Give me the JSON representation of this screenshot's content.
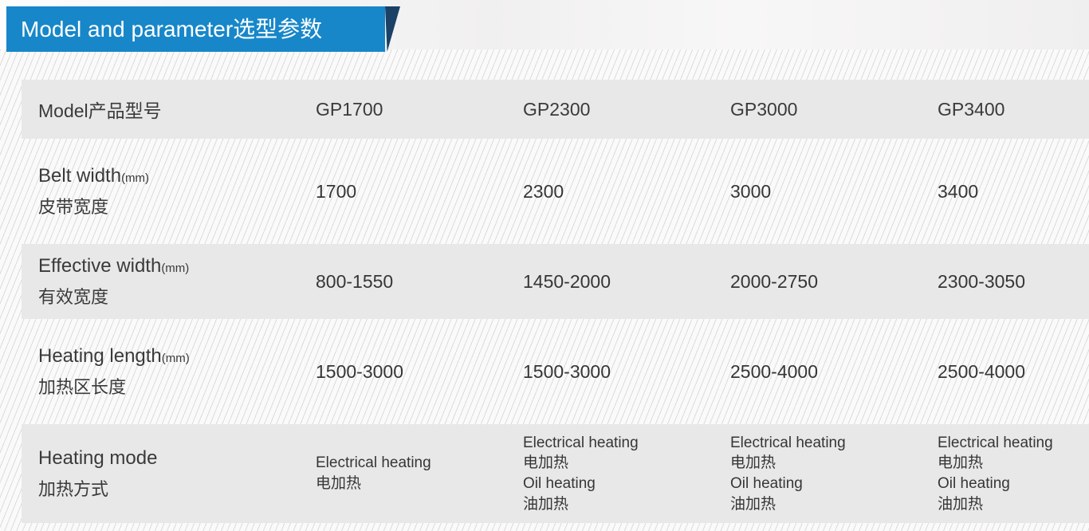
{
  "banner": {
    "title": "Model and parameter选型参数",
    "bg_color": "#1787c9",
    "fold_color": "#1b4166"
  },
  "colors": {
    "row_solid_bg": "#e9e8e8",
    "stripe_line": "#dcdbdb",
    "text": "#3a3a3a"
  },
  "table": {
    "header": {
      "label": "Model产品型号",
      "columns": [
        "GP1700",
        "GP2300",
        "GP3000",
        "GP3400"
      ]
    },
    "rows": [
      {
        "en": "Belt width",
        "unit": "(mm)",
        "zh": "皮带宽度",
        "values": [
          "1700",
          "2300",
          "3000",
          "3400"
        ]
      },
      {
        "en": "Effective width",
        "unit": "(mm)",
        "zh": "有效宽度",
        "values": [
          "800-1550",
          "1450-2000",
          "2000-2750",
          "2300-3050"
        ]
      },
      {
        "en": "Heating length",
        "unit": "(mm)",
        "zh": "加热区长度",
        "values": [
          "1500-3000",
          "1500-3000",
          "2500-4000",
          "2500-4000"
        ]
      },
      {
        "en": "Heating mode",
        "unit": "",
        "zh": "加热方式",
        "values_multiline": [
          [
            "Electrical heating",
            "电加热"
          ],
          [
            "Electrical heating",
            "电加热",
            "Oil heating",
            "油加热"
          ],
          [
            "Electrical heating",
            "电加热",
            "Oil heating",
            "油加热"
          ],
          [
            "Electrical heating",
            "电加热",
            "Oil heating",
            "油加热"
          ]
        ]
      }
    ]
  }
}
